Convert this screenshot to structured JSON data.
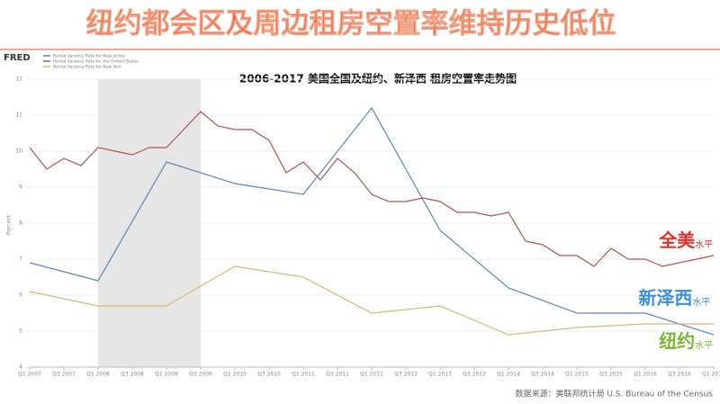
{
  "title": "纽约都会区及周边租房空置率维持历史低位",
  "source": "数据来源：美联邦统计局 U.S. Bureau of the Census",
  "logo": "FRED",
  "chart_data": {
    "type": "line",
    "title": "2006-2017 美国全国及纽约、新泽西 租房空置率走势图",
    "ylabel": "Percent",
    "xlim": [
      2007,
      2017
    ],
    "ylim": [
      4,
      12
    ],
    "yticks": [
      4,
      5,
      6,
      7,
      8,
      9,
      10,
      11,
      12
    ],
    "xticks": [
      {
        "value": 2007,
        "label": "Q1 2007"
      },
      {
        "value": 2007.5,
        "label": "Q3 2007"
      },
      {
        "value": 2008,
        "label": "Q1 2008"
      },
      {
        "value": 2008.5,
        "label": "Q3 2008"
      },
      {
        "value": 2009,
        "label": "Q1 2009"
      },
      {
        "value": 2009.5,
        "label": "Q3 2009"
      },
      {
        "value": 2010,
        "label": "Q1 2010"
      },
      {
        "value": 2010.5,
        "label": "Q3 2010"
      },
      {
        "value": 2011,
        "label": "Q1 2011"
      },
      {
        "value": 2011.5,
        "label": "Q3 2011"
      },
      {
        "value": 2012,
        "label": "Q1 2012"
      },
      {
        "value": 2012.5,
        "label": "Q3 2012"
      },
      {
        "value": 2013,
        "label": "Q1 2013"
      },
      {
        "value": 2013.5,
        "label": "Q3 2013"
      },
      {
        "value": 2014,
        "label": "Q1 2014"
      },
      {
        "value": 2014.5,
        "label": "Q3 2014"
      },
      {
        "value": 2015,
        "label": "Q1 2015"
      },
      {
        "value": 2015.5,
        "label": "Q3 2015"
      },
      {
        "value": 2016,
        "label": "Q1 2016"
      },
      {
        "value": 2016.5,
        "label": "Q3 2016"
      },
      {
        "value": 2017,
        "label": "Q1 2017"
      }
    ],
    "grid": true,
    "recession": [
      2008,
      2009.5
    ],
    "series": [
      {
        "name": "Rental Vacancy Rate for New Jersey",
        "color": "#5b86c0",
        "x": [
          2007,
          2008,
          2009,
          2010,
          2011,
          2012,
          2013,
          2014,
          2015,
          2016,
          2017
        ],
        "values": [
          6.9,
          6.4,
          9.7,
          9.1,
          8.8,
          11.2,
          7.8,
          6.2,
          5.5,
          5.5,
          4.9
        ]
      },
      {
        "name": "Rental Vacancy Rate for the United States",
        "color": "#b0524f",
        "x": [
          2007,
          2007.25,
          2007.5,
          2007.75,
          2008,
          2008.25,
          2008.5,
          2008.75,
          2009,
          2009.25,
          2009.5,
          2009.75,
          2010,
          2010.25,
          2010.5,
          2010.75,
          2011,
          2011.25,
          2011.5,
          2011.75,
          2012,
          2012.25,
          2012.5,
          2012.75,
          2013,
          2013.25,
          2013.5,
          2013.75,
          2014,
          2014.25,
          2014.5,
          2014.75,
          2015,
          2015.25,
          2015.5,
          2015.75,
          2016,
          2016.25,
          2016.5,
          2016.75,
          2017
        ],
        "values": [
          10.1,
          9.5,
          9.8,
          9.6,
          10.1,
          10.0,
          9.9,
          10.1,
          10.1,
          10.6,
          11.1,
          10.7,
          10.6,
          10.6,
          10.3,
          9.4,
          9.7,
          9.2,
          9.8,
          9.4,
          8.8,
          8.6,
          8.6,
          8.7,
          8.6,
          8.3,
          8.3,
          8.2,
          8.3,
          7.5,
          7.4,
          7.1,
          7.1,
          6.8,
          7.3,
          7.0,
          7.0,
          6.8,
          6.9,
          7.0,
          7.1
        ]
      },
      {
        "name": "Rental Vacancy Rate for New York",
        "color": "#d9b877",
        "x": [
          2007,
          2008,
          2009,
          2010,
          2011,
          2012,
          2013,
          2014,
          2015,
          2016,
          2017
        ],
        "values": [
          6.1,
          5.7,
          5.7,
          6.8,
          6.5,
          5.5,
          5.7,
          4.9,
          5.1,
          5.2,
          5.2
        ]
      }
    ],
    "annotations": [
      {
        "text": "全美",
        "suffix": "水平",
        "color": "#e0302a",
        "x": 2016.2,
        "y": 7.5
      },
      {
        "text": "新泽西",
        "suffix": "水平",
        "color": "#3d8fd6",
        "x": 2015.9,
        "y": 5.9
      },
      {
        "text": "纽约",
        "suffix": "水平",
        "color": "#7cb832",
        "x": 2016.2,
        "y": 4.7
      }
    ]
  }
}
